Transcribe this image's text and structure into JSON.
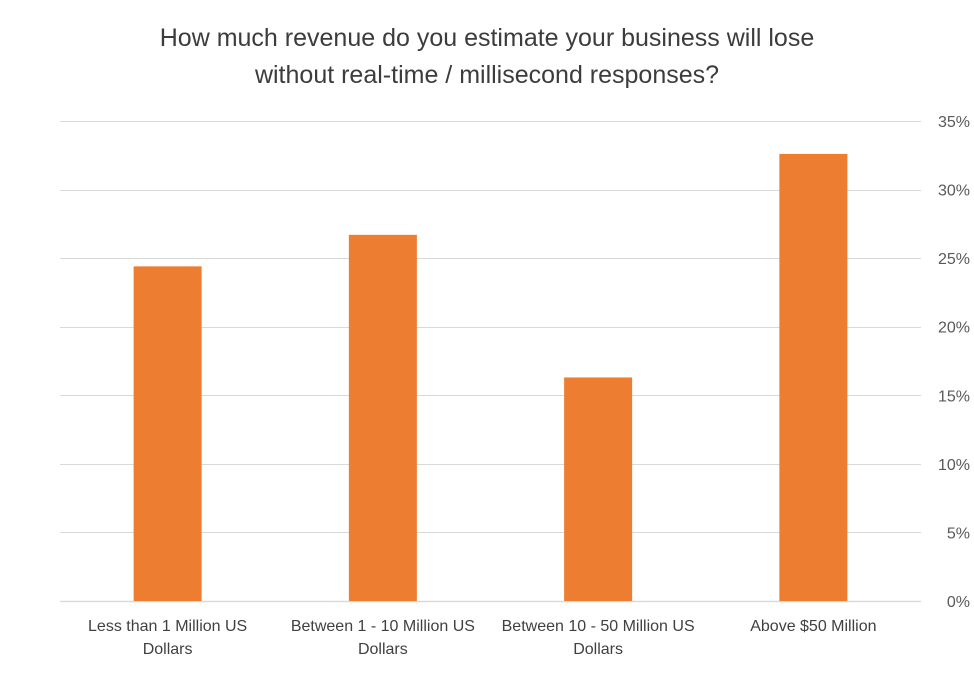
{
  "chart_data": {
    "type": "bar",
    "title": "How much revenue do you estimate your business will lose without real-time / millisecond responses?",
    "title_lines": [
      "How much revenue do you estimate your business will lose",
      "without real-time / millisecond responses?"
    ],
    "categories": [
      [
        "Less than 1 Million US",
        "Dollars"
      ],
      [
        "Between 1 - 10 Million US",
        "Dollars"
      ],
      [
        "Between 10 - 50 Million US",
        "Dollars"
      ],
      [
        "Above $50 Million"
      ]
    ],
    "values": [
      24.4,
      26.7,
      16.3,
      32.6
    ],
    "xlabel": "",
    "ylabel": "",
    "ylim": [
      0,
      35
    ],
    "y_ticks": [
      "0%",
      "5%",
      "10%",
      "15%",
      "20%",
      "25%",
      "30%",
      "35%"
    ],
    "y_tick_values": [
      0,
      5,
      10,
      15,
      20,
      25,
      30,
      35
    ],
    "y_axis_side": "right",
    "grid": true,
    "legend": "none",
    "bar_color": "#ED7D31",
    "grid_color": "#D9D9D9"
  }
}
